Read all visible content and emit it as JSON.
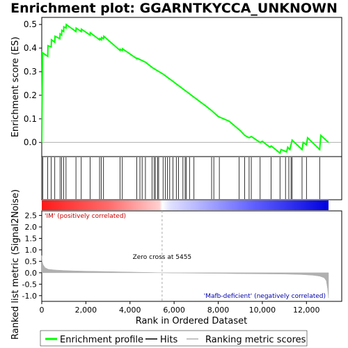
{
  "chart_data": {
    "type": "line",
    "title": "Enrichment plot: GGARNTKYCCA_UNKNOWN",
    "xlabel": "Rank in Ordered Dataset",
    "ylabel_top": "Enrichment score (ES)",
    "ylabel_bottom": "Ranked list metric (Signal2Noise)",
    "xlim": [
      0,
      13000
    ],
    "x_ticks": [
      0,
      2000,
      4000,
      6000,
      8000,
      10000,
      12000
    ],
    "x_tick_labels": [
      "0",
      "2,000",
      "4,000",
      "6,000",
      "8,000",
      "10,000",
      "12,000"
    ],
    "es_ylim": [
      -0.06,
      0.53
    ],
    "es_ticks": [
      0.0,
      0.1,
      0.2,
      0.3,
      0.4,
      0.5
    ],
    "es_tick_labels": [
      "0.0",
      "0.1",
      "0.2",
      "0.3",
      "0.4",
      "0.5"
    ],
    "metric_ylim": [
      -1.25,
      2.7
    ],
    "metric_ticks": [
      -1.0,
      -0.5,
      0.0,
      0.5,
      1.0,
      1.5,
      2.0,
      2.5
    ],
    "metric_tick_labels": [
      "-1.0",
      "-0.5",
      "0.0",
      "0.5",
      "1.0",
      "1.5",
      "2.0",
      "2.5"
    ],
    "enrichment_profile": {
      "x": [
        0,
        30,
        270,
        280,
        430,
        440,
        590,
        600,
        820,
        830,
        900,
        910,
        990,
        1000,
        1100,
        1110,
        1550,
        1560,
        1790,
        1800,
        2190,
        2200,
        2620,
        2630,
        2700,
        2710,
        2800,
        2810,
        3550,
        3560,
        3650,
        3660,
        4310,
        4320,
        4700,
        5050,
        5500,
        6000,
        6500,
        7000,
        7500,
        7700,
        8000,
        8500,
        9000,
        9200,
        9300,
        9400,
        9500,
        9900,
        10000,
        10200,
        10350,
        10400,
        10800,
        10850,
        11100,
        11150,
        11250,
        11300,
        11350,
        11800,
        11850,
        12000,
        12050,
        12600,
        12650,
        13000
      ],
      "y": [
        0.0,
        0.38,
        0.365,
        0.41,
        0.405,
        0.435,
        0.425,
        0.45,
        0.44,
        0.46,
        0.455,
        0.475,
        0.47,
        0.49,
        0.485,
        0.5,
        0.47,
        0.485,
        0.47,
        0.48,
        0.455,
        0.465,
        0.435,
        0.44,
        0.435,
        0.445,
        0.44,
        0.45,
        0.39,
        0.395,
        0.39,
        0.397,
        0.355,
        0.357,
        0.34,
        0.315,
        0.29,
        0.255,
        0.22,
        0.185,
        0.15,
        0.135,
        0.11,
        0.09,
        0.05,
        0.03,
        0.025,
        0.02,
        0.025,
        0.0,
        0.005,
        -0.01,
        -0.02,
        -0.015,
        -0.045,
        -0.03,
        -0.04,
        -0.02,
        -0.03,
        -0.01,
        0.01,
        -0.03,
        0.0,
        -0.01,
        0.02,
        -0.03,
        0.03,
        0.0
      ]
    },
    "hits": [
      50,
      270,
      430,
      590,
      830,
      900,
      990,
      1100,
      1550,
      1790,
      2190,
      2620,
      2700,
      2800,
      3550,
      3650,
      4310,
      4450,
      4550,
      4700,
      5000,
      5100,
      5150,
      5250,
      5300,
      5500,
      5600,
      5700,
      5800,
      5950,
      6100,
      6200,
      6400,
      6500,
      6550,
      6700,
      6900,
      7700,
      7800,
      8050,
      8950,
      9200,
      9400,
      9500,
      9900,
      10400,
      10800,
      11050,
      11200,
      11300,
      11350,
      11800,
      12000,
      12600
    ],
    "zero_cross_rank": 5455,
    "zero_cross_label": "Zero cross at 5455",
    "pos_label": "'IM' (positively correlated)",
    "neg_label": "'Mafb-deficient' (negatively correlated)",
    "metric_profile": {
      "x": [
        0,
        20,
        60,
        150,
        300,
        600,
        1000,
        1500,
        2000,
        3000,
        4000,
        5000,
        5455,
        6000,
        7000,
        8000,
        9000,
        10000,
        11000,
        11800,
        12300,
        12600,
        12800,
        12900,
        12960,
        13000
      ],
      "y": [
        0.75,
        0.5,
        0.35,
        0.22,
        0.15,
        0.12,
        0.1,
        0.08,
        0.07,
        0.05,
        0.03,
        0.01,
        0.0,
        -0.01,
        -0.02,
        -0.03,
        -0.04,
        -0.05,
        -0.06,
        -0.08,
        -0.11,
        -0.15,
        -0.22,
        -0.35,
        -0.7,
        -1.1
      ]
    },
    "legend": {
      "placement": "bottom",
      "entries": [
        "Enrichment profile",
        "Hits",
        "Ranking metric scores"
      ]
    },
    "colors": {
      "profile": "#00ff00",
      "hits": "#000000",
      "metric": "#b0b0b0",
      "pos": "#ff0000",
      "neg": "#0000ff",
      "pos_text": "#cc0000",
      "neg_text": "#0000aa"
    }
  }
}
